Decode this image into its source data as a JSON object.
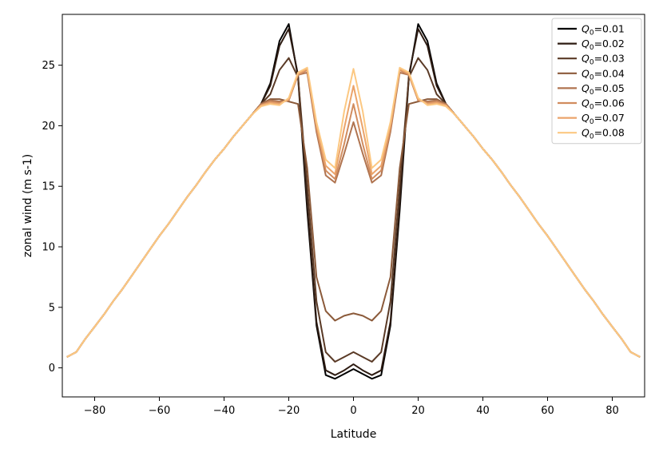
{
  "chart_data": {
    "type": "line",
    "title": "",
    "xlabel": "Latitude",
    "ylabel": "zonal wind (m s-1)",
    "xlim": [
      -90,
      90
    ],
    "ylim": [
      -2.4,
      29.2
    ],
    "xticks": [
      -80,
      -60,
      -40,
      -20,
      0,
      20,
      40,
      60,
      80
    ],
    "yticks": [
      0,
      5,
      10,
      15,
      20,
      25
    ],
    "legend": "top-right",
    "grid": false,
    "x": [
      -88.57,
      -85.71,
      -82.86,
      -80,
      -77.14,
      -74.29,
      -71.43,
      -68.57,
      -65.71,
      -62.86,
      -60,
      -57.14,
      -54.29,
      -51.43,
      -48.57,
      -45.71,
      -42.86,
      -40,
      -37.14,
      -34.29,
      -31.43,
      -28.57,
      -25.71,
      -22.86,
      -20,
      -17.14,
      -14.29,
      -11.43,
      -8.57,
      -5.71,
      -2.86,
      0,
      2.86,
      5.71,
      8.57,
      11.43,
      14.29,
      17.14,
      20,
      22.86,
      25.71,
      28.57,
      31.43,
      34.29,
      37.14,
      40,
      42.86,
      45.71,
      48.57,
      51.43,
      54.29,
      57.14,
      60,
      62.86,
      65.71,
      68.57,
      71.43,
      74.29,
      77.14,
      80,
      82.86,
      85.71,
      88.57
    ],
    "series": [
      {
        "name": "Q0=0.01",
        "color": "#000000",
        "values": [
          0.9,
          1.3,
          2.4,
          3.4,
          4.4,
          5.5,
          6.5,
          7.6,
          8.7,
          9.8,
          10.9,
          11.9,
          13.0,
          14.1,
          15.1,
          16.2,
          17.2,
          18.1,
          19.1,
          20.0,
          20.9,
          21.8,
          23.5,
          27.0,
          28.4,
          24.0,
          13.0,
          3.5,
          -0.6,
          -0.9,
          -0.5,
          -0.1,
          -0.5,
          -0.9,
          -0.6,
          3.5,
          13.0,
          24.0,
          28.4,
          27.0,
          23.5,
          21.8,
          20.9,
          20.0,
          19.1,
          18.1,
          17.2,
          16.2,
          15.1,
          14.1,
          13.0,
          11.9,
          10.9,
          9.8,
          8.7,
          7.6,
          6.5,
          5.5,
          4.4,
          3.4,
          2.4,
          1.3,
          0.9
        ]
      },
      {
        "name": "Q0=0.02",
        "color": "#2d1b12",
        "values": [
          0.9,
          1.3,
          2.4,
          3.4,
          4.4,
          5.5,
          6.5,
          7.6,
          8.7,
          9.8,
          10.9,
          11.9,
          13.0,
          14.1,
          15.1,
          16.2,
          17.2,
          18.1,
          19.1,
          20.0,
          20.9,
          21.8,
          23.3,
          26.6,
          28.0,
          24.2,
          13.5,
          3.8,
          -0.2,
          -0.6,
          -0.2,
          0.3,
          -0.2,
          -0.6,
          -0.2,
          3.8,
          13.5,
          24.2,
          28.0,
          26.6,
          23.3,
          21.8,
          20.9,
          20.0,
          19.1,
          18.1,
          17.2,
          16.2,
          15.1,
          14.1,
          13.0,
          11.9,
          10.9,
          9.8,
          8.7,
          7.6,
          6.5,
          5.5,
          4.4,
          3.4,
          2.4,
          1.3,
          0.9
        ]
      },
      {
        "name": "Q0=0.03",
        "color": "#5a3a26",
        "values": [
          0.9,
          1.3,
          2.4,
          3.4,
          4.4,
          5.5,
          6.5,
          7.6,
          8.7,
          9.8,
          10.9,
          11.9,
          13.0,
          14.1,
          15.1,
          16.2,
          17.2,
          18.1,
          19.1,
          20.0,
          20.9,
          21.8,
          22.6,
          24.6,
          25.6,
          24.0,
          15.0,
          5.5,
          1.3,
          0.5,
          0.9,
          1.3,
          0.9,
          0.5,
          1.3,
          5.5,
          15.0,
          24.0,
          25.6,
          24.6,
          22.6,
          21.8,
          20.9,
          20.0,
          19.1,
          18.1,
          17.2,
          16.2,
          15.1,
          14.1,
          13.0,
          11.9,
          10.9,
          9.8,
          8.7,
          7.6,
          6.5,
          5.5,
          4.4,
          3.4,
          2.4,
          1.3,
          0.9
        ]
      },
      {
        "name": "Q0=0.04",
        "color": "#8b5a3a",
        "values": [
          0.9,
          1.3,
          2.4,
          3.4,
          4.4,
          5.5,
          6.5,
          7.6,
          8.7,
          9.8,
          10.9,
          11.9,
          13.0,
          14.1,
          15.1,
          16.2,
          17.2,
          18.1,
          19.1,
          20.0,
          20.9,
          21.8,
          22.2,
          22.2,
          22.0,
          21.8,
          16.5,
          7.5,
          4.7,
          3.9,
          4.3,
          4.5,
          4.3,
          3.9,
          4.7,
          7.5,
          16.5,
          21.8,
          22.0,
          22.2,
          22.2,
          21.8,
          20.9,
          20.0,
          19.1,
          18.1,
          17.2,
          16.2,
          15.1,
          14.1,
          13.0,
          11.9,
          10.9,
          9.8,
          8.7,
          7.6,
          6.5,
          5.5,
          4.4,
          3.4,
          2.4,
          1.3,
          0.9
        ]
      },
      {
        "name": "Q0=0.05",
        "color": "#b07450",
        "values": [
          0.9,
          1.3,
          2.4,
          3.4,
          4.4,
          5.5,
          6.5,
          7.6,
          8.7,
          9.8,
          10.9,
          11.9,
          13.0,
          14.1,
          15.1,
          16.2,
          17.2,
          18.1,
          19.1,
          20.0,
          20.9,
          21.8,
          22.1,
          22.0,
          22.1,
          24.2,
          24.4,
          19.5,
          15.9,
          15.3,
          17.7,
          20.3,
          17.7,
          15.3,
          15.9,
          19.5,
          24.4,
          24.2,
          22.1,
          22.0,
          22.1,
          21.8,
          20.9,
          20.0,
          19.1,
          18.1,
          17.2,
          16.2,
          15.1,
          14.1,
          13.0,
          11.9,
          10.9,
          9.8,
          8.7,
          7.6,
          6.5,
          5.5,
          4.4,
          3.4,
          2.4,
          1.3,
          0.9
        ]
      },
      {
        "name": "Q0=0.06",
        "color": "#d18c5e",
        "values": [
          0.9,
          1.3,
          2.4,
          3.4,
          4.4,
          5.5,
          6.5,
          7.6,
          8.7,
          9.8,
          10.9,
          11.9,
          13.0,
          14.1,
          15.1,
          16.2,
          17.2,
          18.1,
          19.1,
          20.0,
          20.9,
          21.7,
          22.0,
          21.9,
          22.1,
          24.2,
          24.6,
          19.8,
          16.3,
          15.6,
          18.5,
          21.8,
          18.5,
          15.6,
          16.3,
          19.8,
          24.6,
          24.2,
          22.1,
          21.9,
          22.0,
          21.7,
          20.9,
          20.0,
          19.1,
          18.1,
          17.2,
          16.2,
          15.1,
          14.1,
          13.0,
          11.9,
          10.9,
          9.8,
          8.7,
          7.6,
          6.5,
          5.5,
          4.4,
          3.4,
          2.4,
          1.3,
          0.9
        ]
      },
      {
        "name": "Q0=0.07",
        "color": "#eba46b",
        "values": [
          0.9,
          1.3,
          2.4,
          3.4,
          4.4,
          5.5,
          6.5,
          7.6,
          8.7,
          9.8,
          10.9,
          11.9,
          13.0,
          14.1,
          15.1,
          16.2,
          17.2,
          18.1,
          19.1,
          20.0,
          20.9,
          21.7,
          21.9,
          21.8,
          22.2,
          24.3,
          24.7,
          20.0,
          16.7,
          16.0,
          19.8,
          23.3,
          19.8,
          16.0,
          16.7,
          20.0,
          24.7,
          24.3,
          22.2,
          21.8,
          21.9,
          21.7,
          20.9,
          20.0,
          19.1,
          18.1,
          17.2,
          16.2,
          15.1,
          14.1,
          13.0,
          11.9,
          10.9,
          9.8,
          8.7,
          7.6,
          6.5,
          5.5,
          4.4,
          3.4,
          2.4,
          1.3,
          0.9
        ]
      },
      {
        "name": "Q0=0.08",
        "color": "#fcc882",
        "values": [
          0.9,
          1.3,
          2.4,
          3.4,
          4.4,
          5.5,
          6.5,
          7.6,
          8.7,
          9.8,
          10.9,
          11.9,
          13.0,
          14.1,
          15.1,
          16.2,
          17.2,
          18.1,
          19.1,
          20.0,
          20.9,
          21.6,
          21.8,
          21.7,
          22.3,
          24.4,
          24.8,
          20.3,
          17.2,
          16.5,
          21.2,
          24.7,
          21.2,
          16.5,
          17.2,
          20.3,
          24.8,
          24.4,
          22.3,
          21.7,
          21.8,
          21.6,
          20.9,
          20.0,
          19.1,
          18.1,
          17.2,
          16.2,
          15.1,
          14.1,
          13.0,
          11.9,
          10.9,
          9.8,
          8.7,
          7.6,
          6.5,
          5.5,
          4.4,
          3.4,
          2.4,
          1.3,
          0.9
        ]
      }
    ]
  }
}
